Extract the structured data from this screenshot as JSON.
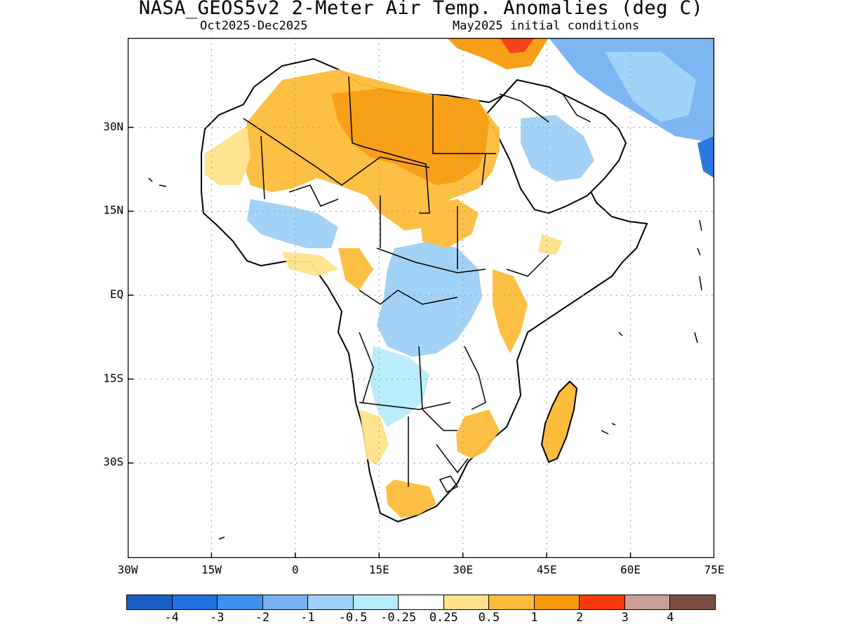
{
  "title": "NASA_GEOS5v2 2-Meter Air Temp. Anomalies (deg C)",
  "subtitle_left": "Oct2025-Dec2025",
  "subtitle_right": "May2025 initial conditions",
  "map": {
    "lon_range": [
      -30,
      75
    ],
    "lat_range": [
      -47,
      46
    ],
    "x_ticks": [
      {
        "lon": -30,
        "label": "30W"
      },
      {
        "lon": -15,
        "label": "15W"
      },
      {
        "lon": 0,
        "label": "0"
      },
      {
        "lon": 15,
        "label": "15E"
      },
      {
        "lon": 30,
        "label": "30E"
      },
      {
        "lon": 45,
        "label": "45E"
      },
      {
        "lon": 60,
        "label": "60E"
      },
      {
        "lon": 75,
        "label": "75E"
      }
    ],
    "y_ticks": [
      {
        "lat": 30,
        "label": "30N"
      },
      {
        "lat": 15,
        "label": "15N"
      },
      {
        "lat": 0,
        "label": "EQ"
      },
      {
        "lat": -15,
        "label": "15S"
      },
      {
        "lat": -30,
        "label": "30S"
      }
    ],
    "grid": "dotted"
  },
  "colorbar": {
    "colors": [
      "#1a5ec8",
      "#2271e0",
      "#3f8fee",
      "#78b3f4",
      "#9fd0f7",
      "#b7ecf9",
      "#ffffff",
      "#ffe28a",
      "#fdbd3c",
      "#fa9a0c",
      "#f83b0c",
      "#c9a097",
      "#7a4f41"
    ],
    "labels": [
      "-4",
      "-3",
      "-2",
      "-1",
      "-0.5",
      "-0.25",
      "0.25",
      "0.5",
      "1",
      "2",
      "3",
      "4"
    ]
  }
}
